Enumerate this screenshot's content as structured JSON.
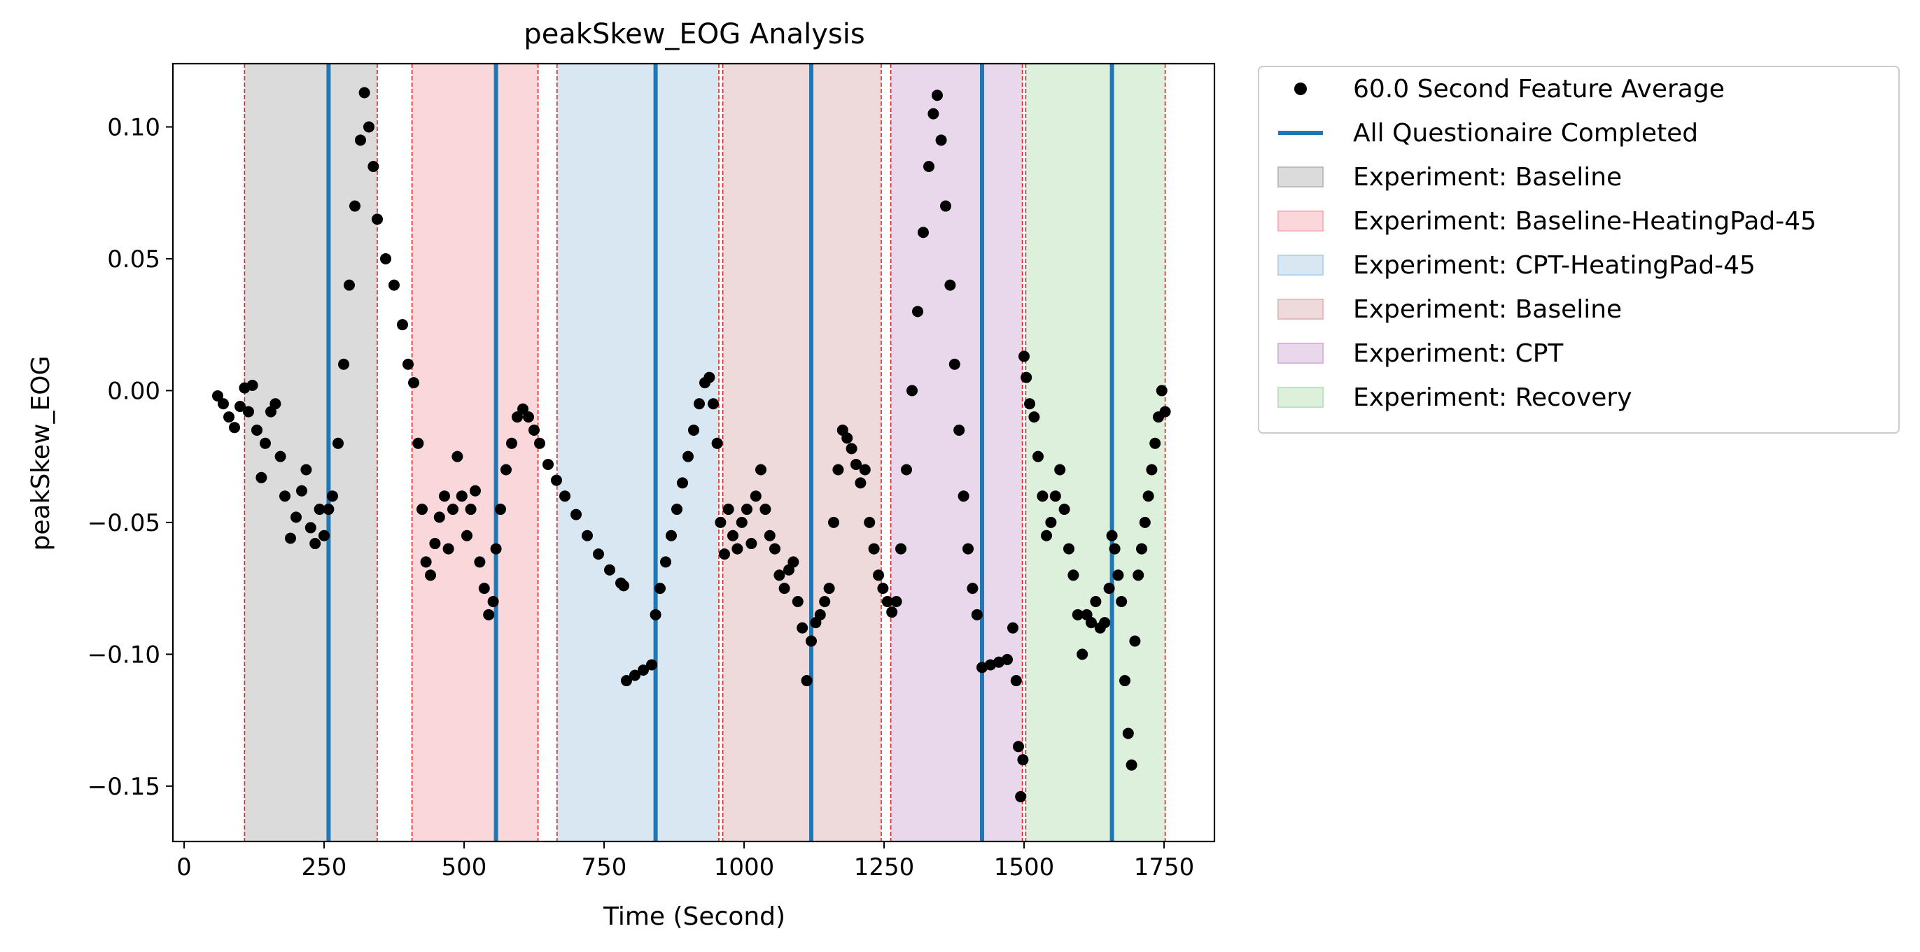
{
  "chart_data": {
    "type": "scatter",
    "title": "peakSkew_EOG Analysis",
    "xlabel": "Time (Second)",
    "ylabel": "peakSkew_EOG",
    "xlim": [
      -20,
      1840
    ],
    "ylim": [
      -0.171,
      0.124
    ],
    "xticks": [
      0,
      250,
      500,
      750,
      1000,
      1250,
      1500,
      1750
    ],
    "xtick_labels": [
      "0",
      "250",
      "500",
      "750",
      "1000",
      "1250",
      "1500",
      "1750"
    ],
    "yticks": [
      0.1,
      0.05,
      0.0,
      -0.05,
      -0.1,
      -0.15
    ],
    "ytick_labels": [
      "0.10",
      "0.05",
      "0.00",
      "−0.05",
      "−0.10",
      "−0.15"
    ],
    "grid": false,
    "legend_position": "outside-right-top",
    "legend": [
      {
        "label": "60.0 Second Feature Average",
        "kind": "marker",
        "color": "#000000"
      },
      {
        "label": "All Questionaire Completed",
        "kind": "line",
        "color": "#1f77b4"
      },
      {
        "label": "Experiment: Baseline",
        "kind": "patch",
        "color": "#bdbdbd"
      },
      {
        "label": "Experiment: Baseline-HeatingPad-45",
        "kind": "patch",
        "color": "#f4b6bb"
      },
      {
        "label": "Experiment: CPT-HeatingPad-45",
        "kind": "patch",
        "color": "#b9d3ea"
      },
      {
        "label": "Experiment: Baseline",
        "kind": "patch",
        "color": "#e2bcbe"
      },
      {
        "label": "Experiment: CPT",
        "kind": "patch",
        "color": "#d7b6dd"
      },
      {
        "label": "Experiment: Recovery",
        "kind": "patch",
        "color": "#bfe3bf"
      }
    ],
    "regions": [
      {
        "label": "Experiment: Baseline",
        "start": 108,
        "end": 345,
        "color": "#bdbdbd"
      },
      {
        "label": "Experiment: Baseline-HeatingPad-45",
        "start": 407,
        "end": 632,
        "color": "#f4b6bb"
      },
      {
        "label": "Experiment: CPT-HeatingPad-45",
        "start": 666,
        "end": 955,
        "color": "#b9d3ea"
      },
      {
        "label": "Experiment: Baseline",
        "start": 962,
        "end": 1245,
        "color": "#e2bcbe"
      },
      {
        "label": "Experiment: CPT",
        "start": 1262,
        "end": 1497,
        "color": "#d7b6dd"
      },
      {
        "label": "Experiment: Recovery",
        "start": 1503,
        "end": 1752,
        "color": "#bfe3bf"
      }
    ],
    "boundary_lines": [
      108,
      345,
      407,
      632,
      666,
      955,
      962,
      1245,
      1262,
      1497,
      1503,
      1752
    ],
    "questionnaire_lines": [
      258,
      557,
      842,
      1120,
      1425,
      1657
    ],
    "series": [
      {
        "name": "60.0 Second Feature Average",
        "color": "#000000",
        "points": [
          [
            60,
            -0.002
          ],
          [
            70,
            -0.005
          ],
          [
            80,
            -0.01
          ],
          [
            90,
            -0.014
          ],
          [
            100,
            -0.006
          ],
          [
            108,
            0.001
          ],
          [
            115,
            -0.008
          ],
          [
            122,
            0.002
          ],
          [
            130,
            -0.015
          ],
          [
            138,
            -0.033
          ],
          [
            145,
            -0.02
          ],
          [
            155,
            -0.008
          ],
          [
            163,
            -0.005
          ],
          [
            172,
            -0.025
          ],
          [
            180,
            -0.04
          ],
          [
            190,
            -0.056
          ],
          [
            200,
            -0.048
          ],
          [
            210,
            -0.038
          ],
          [
            218,
            -0.03
          ],
          [
            226,
            -0.052
          ],
          [
            234,
            -0.058
          ],
          [
            242,
            -0.045
          ],
          [
            250,
            -0.055
          ],
          [
            258,
            -0.045
          ],
          [
            265,
            -0.04
          ],
          [
            275,
            -0.02
          ],
          [
            285,
            0.01
          ],
          [
            295,
            0.04
          ],
          [
            305,
            0.07
          ],
          [
            315,
            0.095
          ],
          [
            322,
            0.113
          ],
          [
            330,
            0.1
          ],
          [
            338,
            0.085
          ],
          [
            345,
            0.065
          ],
          [
            360,
            0.05
          ],
          [
            375,
            0.04
          ],
          [
            390,
            0.025
          ],
          [
            400,
            0.01
          ],
          [
            410,
            0.003
          ],
          [
            418,
            -0.02
          ],
          [
            425,
            -0.045
          ],
          [
            432,
            -0.065
          ],
          [
            440,
            -0.07
          ],
          [
            448,
            -0.058
          ],
          [
            456,
            -0.048
          ],
          [
            465,
            -0.04
          ],
          [
            472,
            -0.06
          ],
          [
            480,
            -0.045
          ],
          [
            488,
            -0.025
          ],
          [
            496,
            -0.04
          ],
          [
            505,
            -0.055
          ],
          [
            512,
            -0.045
          ],
          [
            520,
            -0.038
          ],
          [
            528,
            -0.065
          ],
          [
            536,
            -0.075
          ],
          [
            544,
            -0.085
          ],
          [
            552,
            -0.08
          ],
          [
            557,
            -0.06
          ],
          [
            565,
            -0.045
          ],
          [
            575,
            -0.03
          ],
          [
            585,
            -0.02
          ],
          [
            595,
            -0.01
          ],
          [
            605,
            -0.007
          ],
          [
            615,
            -0.01
          ],
          [
            625,
            -0.015
          ],
          [
            635,
            -0.02
          ],
          [
            650,
            -0.028
          ],
          [
            665,
            -0.034
          ],
          [
            680,
            -0.04
          ],
          [
            700,
            -0.047
          ],
          [
            720,
            -0.055
          ],
          [
            740,
            -0.062
          ],
          [
            760,
            -0.068
          ],
          [
            780,
            -0.073
          ],
          [
            785,
            -0.074
          ],
          [
            790,
            -0.11
          ],
          [
            805,
            -0.108
          ],
          [
            820,
            -0.106
          ],
          [
            835,
            -0.104
          ],
          [
            842,
            -0.085
          ],
          [
            850,
            -0.075
          ],
          [
            860,
            -0.065
          ],
          [
            870,
            -0.055
          ],
          [
            880,
            -0.045
          ],
          [
            890,
            -0.035
          ],
          [
            900,
            -0.025
          ],
          [
            910,
            -0.015
          ],
          [
            920,
            -0.005
          ],
          [
            930,
            0.003
          ],
          [
            938,
            0.005
          ],
          [
            945,
            -0.005
          ],
          [
            952,
            -0.02
          ],
          [
            958,
            -0.05
          ],
          [
            965,
            -0.062
          ],
          [
            972,
            -0.045
          ],
          [
            980,
            -0.055
          ],
          [
            988,
            -0.06
          ],
          [
            996,
            -0.05
          ],
          [
            1005,
            -0.045
          ],
          [
            1013,
            -0.058
          ],
          [
            1021,
            -0.04
          ],
          [
            1030,
            -0.03
          ],
          [
            1038,
            -0.045
          ],
          [
            1046,
            -0.055
          ],
          [
            1055,
            -0.06
          ],
          [
            1063,
            -0.07
          ],
          [
            1072,
            -0.075
          ],
          [
            1080,
            -0.068
          ],
          [
            1088,
            -0.065
          ],
          [
            1096,
            -0.08
          ],
          [
            1104,
            -0.09
          ],
          [
            1112,
            -0.11
          ],
          [
            1120,
            -0.095
          ],
          [
            1128,
            -0.088
          ],
          [
            1136,
            -0.085
          ],
          [
            1144,
            -0.08
          ],
          [
            1152,
            -0.075
          ],
          [
            1160,
            -0.05
          ],
          [
            1168,
            -0.03
          ],
          [
            1176,
            -0.015
          ],
          [
            1184,
            -0.018
          ],
          [
            1192,
            -0.022
          ],
          [
            1200,
            -0.028
          ],
          [
            1208,
            -0.035
          ],
          [
            1216,
            -0.03
          ],
          [
            1224,
            -0.05
          ],
          [
            1232,
            -0.06
          ],
          [
            1240,
            -0.07
          ],
          [
            1248,
            -0.075
          ],
          [
            1256,
            -0.08
          ],
          [
            1264,
            -0.084
          ],
          [
            1272,
            -0.08
          ],
          [
            1280,
            -0.06
          ],
          [
            1290,
            -0.03
          ],
          [
            1300,
            0.0
          ],
          [
            1310,
            0.03
          ],
          [
            1320,
            0.06
          ],
          [
            1330,
            0.085
          ],
          [
            1338,
            0.105
          ],
          [
            1345,
            0.112
          ],
          [
            1352,
            0.095
          ],
          [
            1360,
            0.07
          ],
          [
            1368,
            0.04
          ],
          [
            1376,
            0.01
          ],
          [
            1384,
            -0.015
          ],
          [
            1392,
            -0.04
          ],
          [
            1400,
            -0.06
          ],
          [
            1408,
            -0.075
          ],
          [
            1416,
            -0.085
          ],
          [
            1425,
            -0.105
          ],
          [
            1440,
            -0.104
          ],
          [
            1455,
            -0.103
          ],
          [
            1470,
            -0.102
          ],
          [
            1480,
            -0.09
          ],
          [
            1486,
            -0.11
          ],
          [
            1490,
            -0.135
          ],
          [
            1494,
            -0.154
          ],
          [
            1498,
            -0.14
          ],
          [
            1500,
            0.013
          ],
          [
            1504,
            0.005
          ],
          [
            1510,
            -0.005
          ],
          [
            1518,
            -0.01
          ],
          [
            1525,
            -0.025
          ],
          [
            1533,
            -0.04
          ],
          [
            1540,
            -0.055
          ],
          [
            1548,
            -0.05
          ],
          [
            1556,
            -0.04
          ],
          [
            1564,
            -0.03
          ],
          [
            1572,
            -0.045
          ],
          [
            1580,
            -0.06
          ],
          [
            1588,
            -0.07
          ],
          [
            1596,
            -0.085
          ],
          [
            1604,
            -0.1
          ],
          [
            1612,
            -0.085
          ],
          [
            1620,
            -0.088
          ],
          [
            1628,
            -0.08
          ],
          [
            1636,
            -0.09
          ],
          [
            1644,
            -0.088
          ],
          [
            1652,
            -0.075
          ],
          [
            1657,
            -0.055
          ],
          [
            1662,
            -0.06
          ],
          [
            1668,
            -0.07
          ],
          [
            1674,
            -0.08
          ],
          [
            1680,
            -0.11
          ],
          [
            1686,
            -0.13
          ],
          [
            1692,
            -0.142
          ],
          [
            1698,
            -0.095
          ],
          [
            1704,
            -0.07
          ],
          [
            1710,
            -0.06
          ],
          [
            1716,
            -0.05
          ],
          [
            1722,
            -0.04
          ],
          [
            1728,
            -0.03
          ],
          [
            1734,
            -0.02
          ],
          [
            1740,
            -0.01
          ],
          [
            1746,
            -0.0
          ],
          [
            1752,
            -0.008
          ]
        ]
      }
    ]
  }
}
